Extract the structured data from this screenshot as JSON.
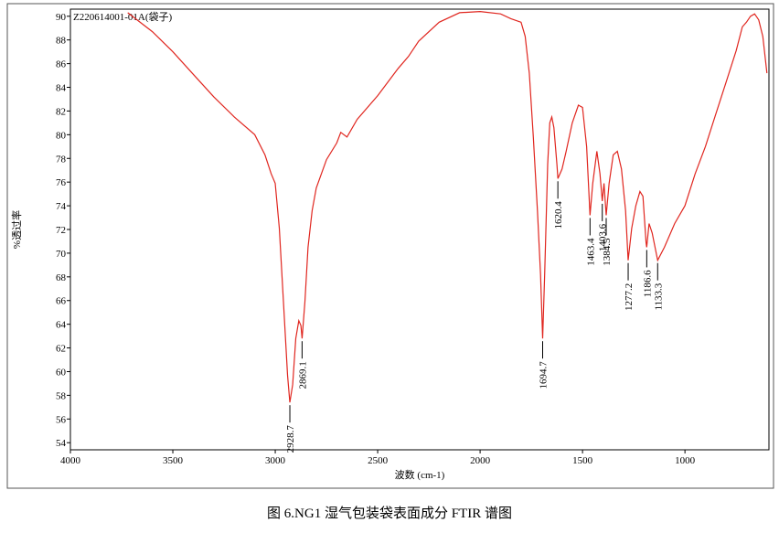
{
  "chart_data": {
    "type": "line",
    "title": "Z220614001-01A(袋子)",
    "xlabel": "波数 (cm-1)",
    "ylabel": "%透过率",
    "caption": "图 6.NG1 湿气包装袋表面成分 FTIR 谱图",
    "color": "#e0261f",
    "xlim": [
      4000,
      590
    ],
    "ylim": [
      53.4,
      90.6
    ],
    "xticks": [
      4000,
      3500,
      3000,
      2500,
      2000,
      1500,
      1000
    ],
    "yticks": [
      54,
      56,
      58,
      60,
      62,
      64,
      66,
      68,
      70,
      72,
      74,
      76,
      78,
      80,
      82,
      84,
      86,
      88,
      90
    ],
    "x": [
      3720,
      3600,
      3500,
      3400,
      3300,
      3200,
      3100,
      3050,
      3020,
      3000,
      2980,
      2960,
      2940,
      2928.7,
      2915,
      2900,
      2885,
      2875,
      2869,
      2855,
      2840,
      2820,
      2800,
      2750,
      2700,
      2680,
      2650,
      2600,
      2500,
      2400,
      2350,
      2300,
      2200,
      2100,
      2000,
      1900,
      1850,
      1800,
      1780,
      1760,
      1740,
      1720,
      1705,
      1694.7,
      1685,
      1670,
      1660,
      1650,
      1640,
      1625,
      1620,
      1600,
      1580,
      1550,
      1520,
      1500,
      1480,
      1463.4,
      1450,
      1430,
      1415,
      1403.6,
      1395,
      1384.5,
      1370,
      1350,
      1330,
      1310,
      1290,
      1277.2,
      1260,
      1240,
      1220,
      1205,
      1190,
      1186.6,
      1175,
      1160,
      1133.3,
      1100,
      1050,
      1000,
      950,
      900,
      850,
      800,
      750,
      720,
      700,
      680,
      660,
      640,
      620,
      600
    ],
    "values": [
      90.3,
      88.7,
      87.0,
      85.1,
      83.2,
      81.5,
      80.0,
      78.3,
      76.7,
      75.9,
      72.1,
      65.9,
      59.7,
      57.4,
      58.9,
      62.8,
      64.3,
      63.9,
      62.8,
      65.9,
      70.5,
      73.6,
      75.5,
      77.9,
      79.3,
      80.2,
      79.8,
      81.3,
      83.3,
      85.6,
      86.6,
      87.9,
      89.5,
      90.3,
      90.4,
      90.2,
      89.8,
      89.5,
      88.3,
      85.2,
      79.8,
      73.6,
      68.2,
      62.8,
      68.2,
      77.5,
      81.0,
      81.5,
      80.6,
      77.5,
      76.3,
      77.1,
      78.6,
      81.0,
      82.5,
      82.3,
      79.0,
      73.2,
      75.9,
      78.6,
      76.7,
      74.4,
      75.9,
      73.2,
      75.9,
      78.3,
      78.6,
      77.1,
      73.6,
      69.4,
      72.1,
      74.0,
      75.2,
      74.8,
      70.9,
      70.5,
      72.5,
      71.7,
      69.4,
      70.5,
      72.5,
      74.0,
      76.7,
      79.0,
      81.7,
      84.4,
      87.1,
      89.1,
      89.5,
      90.0,
      90.2,
      89.7,
      88.3,
      85.2
    ],
    "annotations": [
      {
        "x": 2928.7,
        "y": 57.4
      },
      {
        "x": 2869.1,
        "y": 62.8
      },
      {
        "x": 1694.7,
        "y": 62.8
      },
      {
        "x": 1620.4,
        "y": 76.3
      },
      {
        "x": 1463.4,
        "y": 73.2
      },
      {
        "x": 1403.6,
        "y": 74.4
      },
      {
        "x": 1384.5,
        "y": 73.2
      },
      {
        "x": 1277.2,
        "y": 69.4
      },
      {
        "x": 1186.6,
        "y": 70.5
      },
      {
        "x": 1133.3,
        "y": 69.4
      }
    ]
  }
}
